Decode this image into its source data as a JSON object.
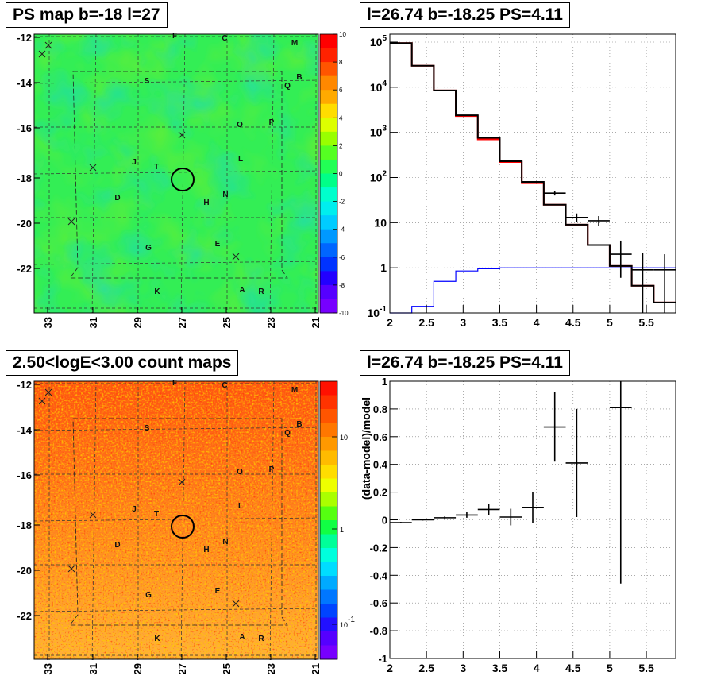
{
  "panels": {
    "map_title": "PS map b=-18 l=27",
    "count_title": "2.50<logE<3.00 count maps",
    "spectrum_title": "l=26.74 b=-18.25 PS=4.11",
    "residual_title": "l=26.74 b=-18.25 PS=4.11"
  },
  "sky_maps": {
    "y_ticks": [
      "-12",
      "-14",
      "-16",
      "-18",
      "-20",
      "-22"
    ],
    "x_ticks": [
      "33",
      "31",
      "29",
      "27",
      "25",
      "23",
      "21"
    ],
    "source_labels": [
      "F",
      "C",
      "M",
      "B",
      "Q",
      "S",
      "O",
      "P",
      "L",
      "J",
      "T",
      "N",
      "D",
      "H",
      "E",
      "G",
      "K",
      "A",
      "R"
    ],
    "ps_colorbar_ticks": [
      "10",
      "8",
      "6",
      "4",
      "2",
      "0",
      "-2",
      "-4",
      "-6",
      "-8",
      "-10"
    ],
    "count_colorbar_ticks": [
      "10",
      "1",
      "10-1"
    ]
  },
  "chart_data": [
    {
      "type": "histogram",
      "title": "l=26.74 b=-18.25 PS=4.11",
      "xlabel": "",
      "ylabel": "",
      "yscale": "log",
      "xlim": [
        2,
        5.9
      ],
      "ylim": [
        0.1,
        150000
      ],
      "grid": true,
      "x_ticks": [
        "2",
        "2.5",
        "3",
        "3.5",
        "4",
        "4.5",
        "5",
        "5.5"
      ],
      "y_ticks": [
        "10-1",
        "1",
        "10",
        "102",
        "103",
        "104",
        "105"
      ],
      "bin_edges": [
        2.0,
        2.3,
        2.6,
        2.9,
        3.2,
        3.5,
        3.8,
        4.1,
        4.4,
        4.7,
        5.0,
        5.3,
        5.6,
        5.9
      ],
      "series": [
        {
          "color": "#ff0000",
          "values": [
            95000,
            30000,
            8500,
            2300,
            700,
            220,
            75,
            25,
            9,
            3.2,
            1.1,
            0.4,
            0.17
          ]
        },
        {
          "color": "#000000",
          "values": [
            95000,
            30000,
            8500,
            2400,
            760,
            230,
            80,
            25,
            9,
            3.2,
            1.1,
            0.4,
            0.17
          ]
        },
        {
          "color": "#0000ff",
          "values": [
            0.1,
            0.14,
            0.5,
            0.85,
            0.95,
            1.0,
            1.0,
            1.0,
            1.0,
            1.0,
            1.0,
            1.0,
            1.0
          ]
        }
      ],
      "data_points": [
        {
          "x": 4.25,
          "y": 45,
          "ylo": 40,
          "yhi": 50
        },
        {
          "x": 4.55,
          "y": 13,
          "ylo": 10.5,
          "yhi": 16
        },
        {
          "x": 4.85,
          "y": 11,
          "ylo": 8.5,
          "yhi": 14
        },
        {
          "x": 5.15,
          "y": 2,
          "ylo": 0.6,
          "yhi": 4
        },
        {
          "x": 5.45,
          "y": 0.9,
          "ylo": 0.1,
          "yhi": 2.1
        },
        {
          "x": 5.75,
          "y": 0.9,
          "ylo": 0.1,
          "yhi": 2.0
        }
      ]
    },
    {
      "type": "scatter",
      "title": "l=26.74 b=-18.25 PS=4.11",
      "xlabel": "",
      "ylabel": "(data-model)/model",
      "xlim": [
        2,
        5.9
      ],
      "ylim": [
        -1,
        1
      ],
      "grid": true,
      "x_ticks": [
        "2",
        "2.5",
        "3",
        "3.5",
        "4",
        "4.5",
        "5",
        "5.5"
      ],
      "y_ticks": [
        "1",
        "0.8",
        "0.6",
        "0.4",
        "0.2",
        "0",
        "-0.2",
        "-0.4",
        "-0.6",
        "-0.8",
        "-1"
      ],
      "points": [
        {
          "x": 2.15,
          "y": -0.02,
          "xerr": 0.15,
          "yerr": 0.005
        },
        {
          "x": 2.45,
          "y": 0.0,
          "xerr": 0.15,
          "yerr": 0.005
        },
        {
          "x": 2.75,
          "y": 0.015,
          "xerr": 0.15,
          "yerr": 0.01
        },
        {
          "x": 3.05,
          "y": 0.035,
          "xerr": 0.15,
          "yerr": 0.02
        },
        {
          "x": 3.35,
          "y": 0.075,
          "xerr": 0.15,
          "yerr": 0.04
        },
        {
          "x": 3.65,
          "y": 0.02,
          "xerr": 0.15,
          "yerr": 0.06
        },
        {
          "x": 3.95,
          "y": 0.09,
          "xerr": 0.15,
          "yerr": 0.11
        },
        {
          "x": 4.25,
          "y": 0.67,
          "xerr": 0.15,
          "yerr": 0.25
        },
        {
          "x": 4.55,
          "y": 0.41,
          "xerr": 0.15,
          "yerr": 0.39
        },
        {
          "x": 5.15,
          "y": 0.81,
          "xerr": 0.15,
          "yerr": 1.27
        }
      ]
    }
  ]
}
